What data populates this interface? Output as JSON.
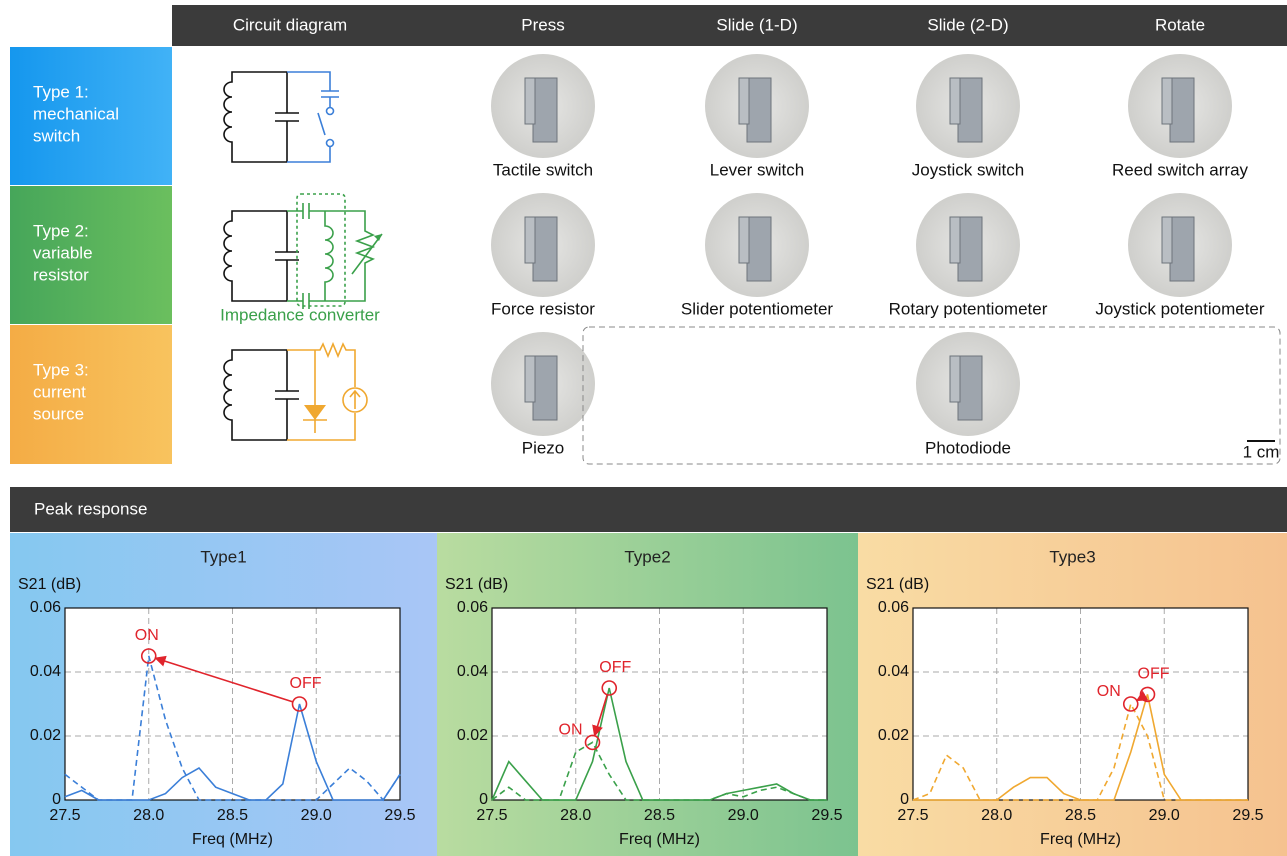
{
  "header": {
    "columns": [
      "Circuit diagram",
      "Press",
      "Slide (1-D)",
      "Slide (2-D)",
      "Rotate"
    ]
  },
  "rows": [
    {
      "label": [
        "Type 1:",
        "mechanical",
        "switch"
      ],
      "items": [
        "Tactile switch",
        "Lever switch",
        "Joystick switch",
        "Reed switch array"
      ]
    },
    {
      "label": [
        "Type 2:",
        "variable",
        "resistor"
      ],
      "items": [
        "Force resistor",
        "Slider potentiometer",
        "Rotary potentiometer",
        "Joystick potentiometer"
      ]
    },
    {
      "label": [
        "Type 3:",
        "current",
        "source"
      ],
      "items": [
        "Piezo",
        "Photodiode"
      ]
    }
  ],
  "impedance_label": "Impedance converter",
  "scale_label": "1 cm",
  "section_title": "Peak response",
  "chart_data": [
    {
      "type": "line",
      "title": "Type1",
      "y_label": "S21 (dB)",
      "x_label": "Freq (MHz)",
      "x": [
        27.5,
        27.6,
        27.7,
        27.8,
        27.9,
        28.0,
        28.1,
        28.2,
        28.3,
        28.4,
        28.5,
        28.6,
        28.7,
        28.8,
        28.9,
        29.0,
        29.1,
        29.2,
        29.3,
        29.4,
        29.5
      ],
      "xlim": [
        27.5,
        29.5
      ],
      "xticks": [
        27.5,
        {
          "value": 28,
          "label": "28.0"
        },
        28.5,
        {
          "value": 29,
          "label": "29.0"
        },
        29.5
      ],
      "ylim": [
        0,
        0.06
      ],
      "yticks": [
        0,
        0.02,
        0.04,
        0.06
      ],
      "grid": true,
      "series": [
        {
          "color": "#3b7fd8",
          "style": "solid",
          "values": [
            0.001,
            0.003,
            0,
            0,
            0,
            0,
            0.002,
            0.007,
            0.01,
            0.004,
            0.002,
            0,
            0,
            0.005,
            0.03,
            0.012,
            0,
            0,
            0,
            0,
            0.008
          ]
        },
        {
          "color": "#3b7fd8",
          "style": "dashed",
          "values": [
            0.008,
            0.004,
            0,
            0,
            0,
            0.045,
            0.025,
            0.01,
            0,
            0,
            0,
            0,
            0,
            0,
            0,
            0,
            0.005,
            0.01,
            0.006,
            0,
            0.008
          ]
        }
      ],
      "annotations": [
        {
          "text": "OFF",
          "x": 28.9,
          "y": 0.03
        },
        {
          "text": "ON",
          "x": 28.0,
          "y": 0.045
        }
      ]
    },
    {
      "type": "line",
      "title": "Type2",
      "y_label": "S21 (dB)",
      "x_label": "Freq (MHz)",
      "x": [
        27.5,
        27.6,
        27.7,
        27.8,
        27.9,
        28.0,
        28.1,
        28.2,
        28.3,
        28.4,
        28.5,
        28.6,
        28.7,
        28.8,
        28.9,
        29.0,
        29.1,
        29.2,
        29.3,
        29.4,
        29.5
      ],
      "xlim": [
        27.5,
        29.5
      ],
      "xticks": [
        27.5,
        {
          "value": 28,
          "label": "28.0"
        },
        28.5,
        {
          "value": 29,
          "label": "29.0"
        },
        29.5
      ],
      "ylim": [
        0,
        0.06
      ],
      "yticks": [
        0,
        0.02,
        0.04,
        0.06
      ],
      "grid": true,
      "series": [
        {
          "color": "#3aa04a",
          "style": "solid",
          "values": [
            0,
            0.012,
            0.006,
            0,
            0,
            0,
            0.012,
            0.035,
            0.012,
            0,
            0,
            0,
            0,
            0,
            0.002,
            0.003,
            0.004,
            0.005,
            0.002,
            0,
            0
          ]
        },
        {
          "color": "#3aa04a",
          "style": "dashed",
          "values": [
            0,
            0.004,
            0,
            0,
            0,
            0.015,
            0.018,
            0.008,
            0,
            0,
            0,
            0,
            0,
            0,
            0.002,
            0.001,
            0.003,
            0.004,
            0.002,
            0,
            0
          ]
        }
      ],
      "annotations": [
        {
          "text": "OFF",
          "x": 28.2,
          "y": 0.035
        },
        {
          "text": "ON",
          "x": 28.1,
          "y": 0.018
        }
      ]
    },
    {
      "type": "line",
      "title": "Type3",
      "y_label": "S21 (dB)",
      "x_label": "Freq (MHz)",
      "x": [
        27.5,
        27.6,
        27.7,
        27.8,
        27.9,
        28.0,
        28.1,
        28.2,
        28.3,
        28.4,
        28.5,
        28.6,
        28.7,
        28.8,
        28.9,
        29.0,
        29.1,
        29.2,
        29.3,
        29.4,
        29.5
      ],
      "xlim": [
        27.5,
        29.5
      ],
      "xticks": [
        27.5,
        {
          "value": 28,
          "label": "28.0"
        },
        28.5,
        {
          "value": 29,
          "label": "29.0"
        },
        29.5
      ],
      "ylim": [
        0,
        0.06
      ],
      "yticks": [
        0,
        0.02,
        0.04,
        0.06
      ],
      "grid": true,
      "series": [
        {
          "color": "#f0a830",
          "style": "solid",
          "values": [
            0,
            0,
            0,
            0,
            0,
            0,
            0.004,
            0.007,
            0.007,
            0.002,
            0,
            0,
            0,
            0.015,
            0.033,
            0.008,
            0,
            0,
            0,
            0,
            0
          ]
        },
        {
          "color": "#f0a830",
          "style": "dashed",
          "values": [
            0,
            0.002,
            0.014,
            0.01,
            0,
            0,
            0,
            0,
            0,
            0,
            0,
            0,
            0.01,
            0.03,
            0.02,
            0,
            0,
            0,
            0,
            0,
            0
          ]
        }
      ],
      "annotations": [
        {
          "text": "OFF",
          "x": 28.9,
          "y": 0.033
        },
        {
          "text": "ON",
          "x": 28.8,
          "y": 0.03
        }
      ]
    }
  ]
}
